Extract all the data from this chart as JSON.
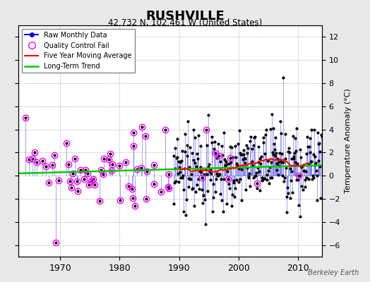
{
  "title": "RUSHVILLE",
  "subtitle": "42.732 N, 102.461 W (United States)",
  "ylabel_right": "Temperature Anomaly (°C)",
  "watermark": "Berkeley Earth",
  "xlim": [
    1963,
    2014
  ],
  "ylim": [
    -7,
    13
  ],
  "yticks": [
    -6,
    -4,
    -2,
    0,
    2,
    4,
    6,
    8,
    10,
    12
  ],
  "xticks": [
    1970,
    1980,
    1990,
    2000,
    2010
  ],
  "background_color": "#e8e8e8",
  "plot_bg_color": "#ffffff",
  "raw_color": "#0000dd",
  "qc_fail_color": "#ff00ff",
  "moving_avg_color": "#ff0000",
  "trend_color": "#00cc00",
  "trend_x": [
    1963,
    2014
  ],
  "trend_y": [
    0.2,
    0.9
  ],
  "seed": 42
}
